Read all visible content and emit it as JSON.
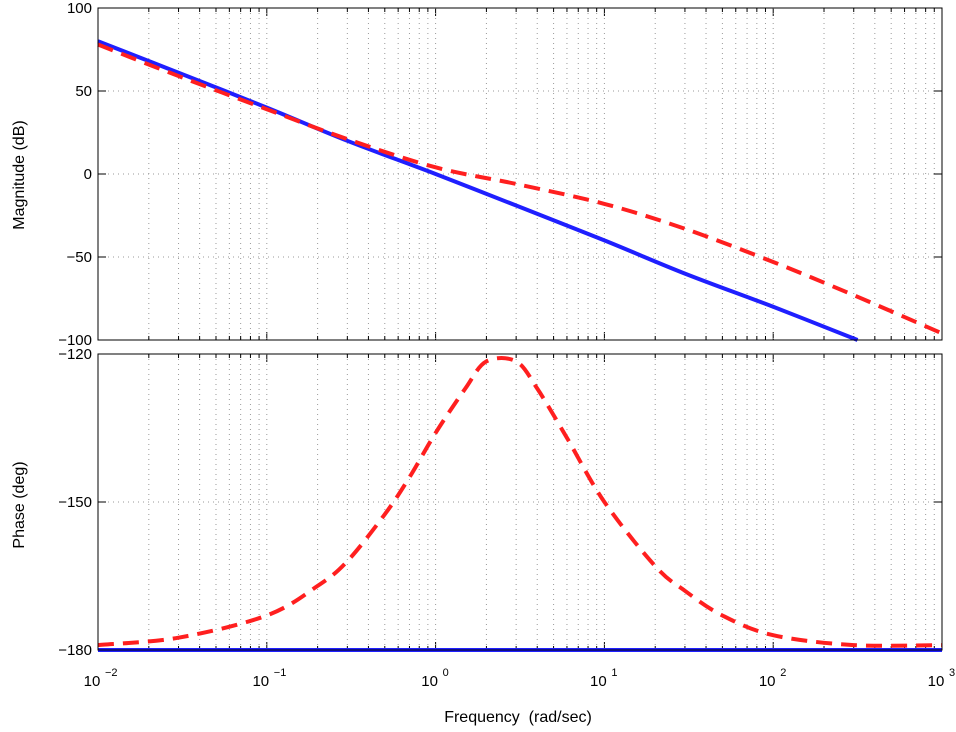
{
  "chart_data": [
    {
      "type": "line",
      "panel": "magnitude",
      "ylabel": "Magnitude (dB)",
      "xlabel": "",
      "xscale": "log",
      "xlim": [
        0.01,
        1000
      ],
      "ylim": [
        -100,
        100
      ],
      "yticks": [
        100,
        50,
        0,
        -50,
        -100
      ],
      "ytick_labels": [
        "100",
        "50",
        "0",
        "−50",
        "−100"
      ],
      "grid": "dotted",
      "series": [
        {
          "color": "#1f1fff",
          "style": "solid",
          "x": [
            0.01,
            0.03,
            0.1,
            0.3,
            1,
            3,
            10,
            30,
            100,
            316
          ],
          "y": [
            80,
            61,
            40,
            20,
            0,
            -19,
            -40,
            -60,
            -80,
            -100
          ]
        },
        {
          "color": "#ff1f1f",
          "style": "dashed",
          "x": [
            0.01,
            0.03,
            0.1,
            0.3,
            1,
            3,
            10,
            30,
            100,
            300,
            1000
          ],
          "y": [
            78,
            59,
            39,
            21,
            4,
            -6,
            -18,
            -33,
            -53,
            -73,
            -96
          ]
        }
      ]
    },
    {
      "type": "line",
      "panel": "phase",
      "ylabel": "Phase (deg)",
      "xlabel": "Frequency  (rad/sec)",
      "xscale": "log",
      "xlim": [
        0.01,
        1000
      ],
      "ylim": [
        -180,
        -120
      ],
      "yticks": [
        -120,
        -150,
        -180
      ],
      "ytick_labels": [
        "−120",
        "−150",
        "−180"
      ],
      "xtick_labels": [
        {
          "base": "10",
          "exp": "−2"
        },
        {
          "base": "10",
          "exp": "−1"
        },
        {
          "base": "10",
          "exp": "0"
        },
        {
          "base": "10",
          "exp": "1"
        },
        {
          "base": "10",
          "exp": "2"
        },
        {
          "base": "10",
          "exp": "3"
        }
      ],
      "grid": "dotted",
      "series": [
        {
          "color": "#1f1fff",
          "style": "solid",
          "x": [
            0.01,
            1000
          ],
          "y": [
            -180,
            -180
          ]
        },
        {
          "color": "#ff1f1f",
          "style": "dashed",
          "x": [
            0.01,
            0.03,
            0.1,
            0.2,
            0.3,
            0.5,
            0.7,
            1,
            1.5,
            2,
            3,
            4,
            6,
            10,
            20,
            30,
            50,
            100,
            300,
            1000
          ],
          "y": [
            -179,
            -177.5,
            -173,
            -167,
            -162,
            -152.5,
            -145,
            -136,
            -127,
            -121.5,
            -121.5,
            -127,
            -137,
            -150,
            -163,
            -168,
            -173,
            -177,
            -179,
            -179
          ]
        }
      ]
    }
  ]
}
